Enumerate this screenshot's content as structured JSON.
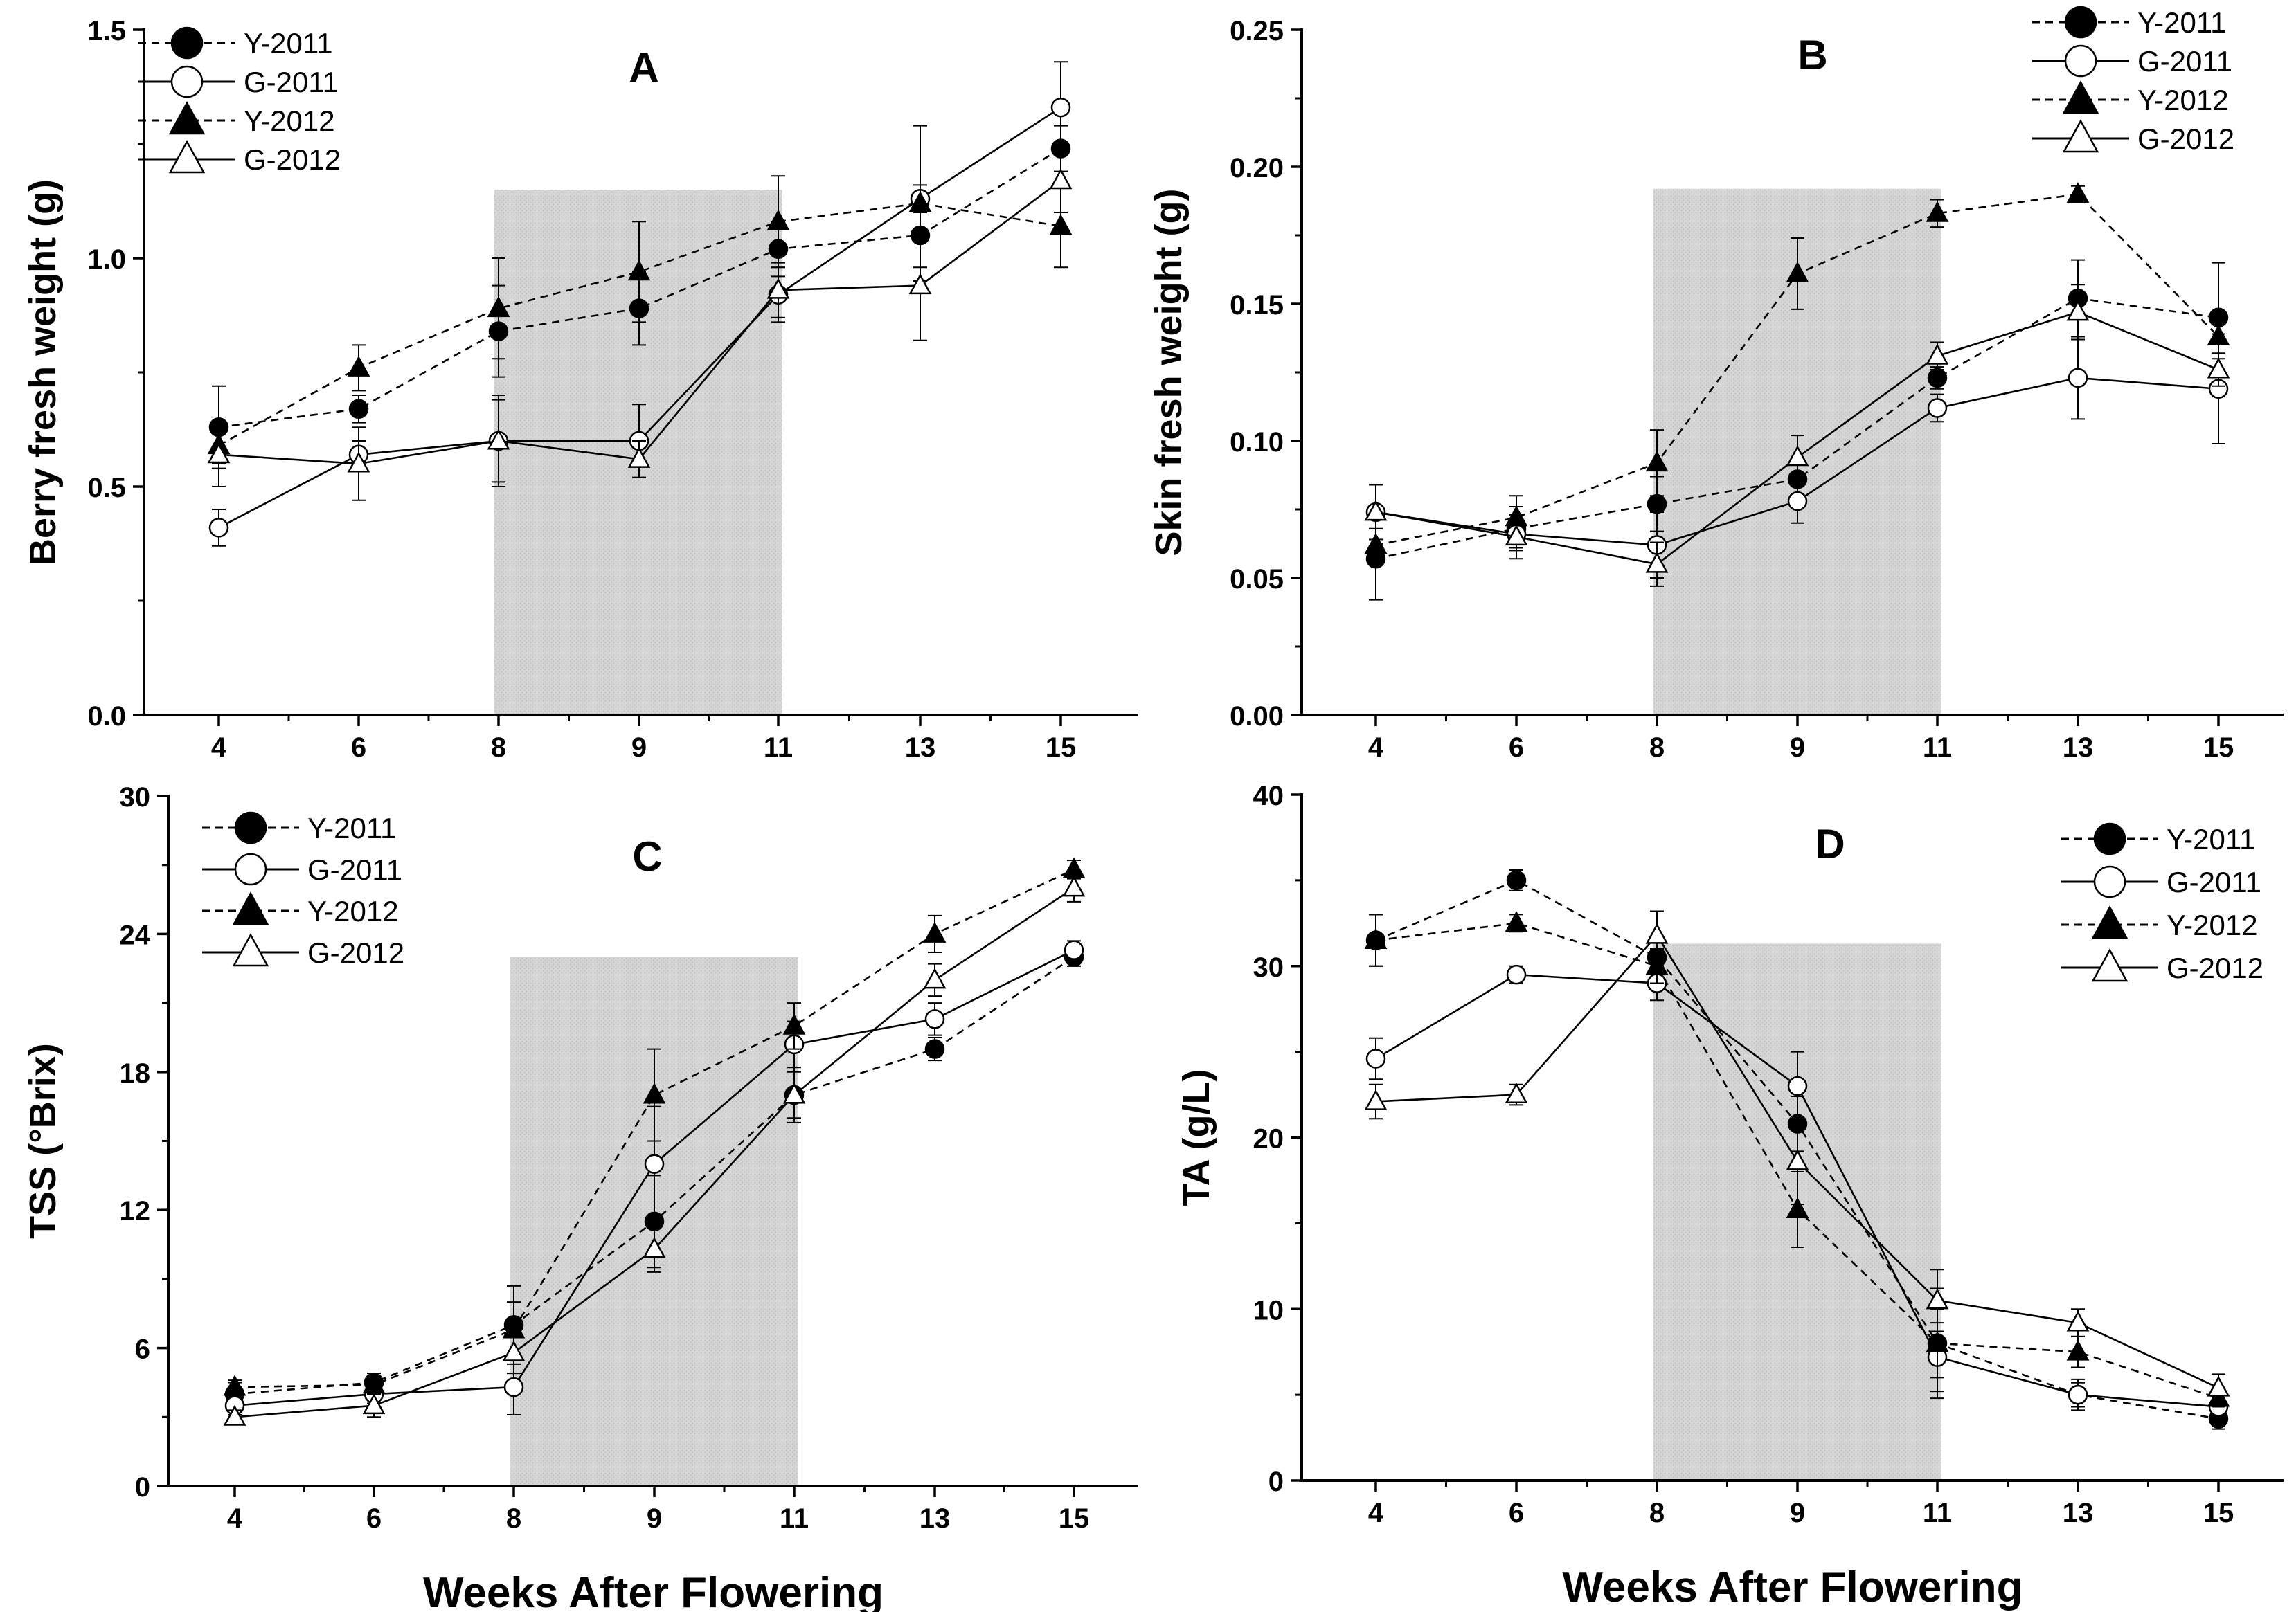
{
  "x_axis_title": "Weeks After Flowering",
  "legend_labels": [
    "Y-2011",
    "G-2011",
    "Y-2012",
    "G-2012"
  ],
  "colors": {
    "ink": "#000000",
    "shade": "#d4d4d4",
    "shade_text_gray": "#7a7a7a"
  },
  "chart_data": [
    {
      "id": "A",
      "type": "line",
      "title": "A",
      "xlabel": "Weeks After Flowering",
      "ylabel": "Berry fresh weight (g)",
      "categories": [
        "4",
        "6",
        "8",
        "9",
        "11",
        "13",
        "15"
      ],
      "ylim": [
        0,
        1.5
      ],
      "yticks": [
        0.0,
        0.5,
        1.0,
        1.5
      ],
      "ytick_labels": [
        "0.0",
        "0.5",
        "1.0",
        "1.5"
      ],
      "shaded_between": [
        "8",
        "11"
      ],
      "shade_top": 1.15,
      "legend_position": "top-left",
      "series": [
        {
          "name": "Y-2011",
          "style": "dashed",
          "marker": "circle-filled",
          "values": [
            0.63,
            0.67,
            0.84,
            0.89,
            1.02,
            1.05,
            1.24
          ],
          "errors": [
            0.09,
            0.03,
            0.1,
            0.08,
            0.06,
            0.07,
            0.05
          ]
        },
        {
          "name": "G-2011",
          "style": "solid",
          "marker": "circle-open",
          "values": [
            0.41,
            0.57,
            0.6,
            0.6,
            0.92,
            1.13,
            1.33
          ],
          "errors": [
            0.04,
            0.03,
            0.09,
            0.08,
            0.06,
            0.03,
            0.1
          ]
        },
        {
          "name": "Y-2012",
          "style": "dashed",
          "marker": "triangle-filled",
          "values": [
            0.59,
            0.76,
            0.89,
            0.97,
            1.08,
            1.12,
            1.07
          ],
          "errors": [
            0.04,
            0.05,
            0.11,
            0.11,
            0.1,
            0.17,
            0.09
          ]
        },
        {
          "name": "G-2012",
          "style": "solid",
          "marker": "triangle-open",
          "values": [
            0.57,
            0.55,
            0.6,
            0.56,
            0.93,
            0.94,
            1.17
          ],
          "errors": [
            0.07,
            0.08,
            0.1,
            0.04,
            0.06,
            0.12,
            0.07
          ]
        }
      ]
    },
    {
      "id": "B",
      "type": "line",
      "title": "B",
      "xlabel": "Weeks After Flowering",
      "ylabel": "Skin fresh weight (g)",
      "categories": [
        "4",
        "6",
        "8",
        "9",
        "11",
        "13",
        "15"
      ],
      "ylim": [
        0,
        0.25
      ],
      "yticks": [
        0.0,
        0.05,
        0.1,
        0.15,
        0.2,
        0.25
      ],
      "ytick_labels": [
        "0.00",
        "0.05",
        "0.10",
        "0.15",
        "0.20",
        "0.25"
      ],
      "shaded_between": [
        "8",
        "11"
      ],
      "shade_top": 0.192,
      "legend_position": "top-right",
      "series": [
        {
          "name": "Y-2011",
          "style": "dashed",
          "marker": "circle-filled",
          "values": [
            0.057,
            0.068,
            0.077,
            0.086,
            0.123,
            0.152,
            0.145
          ],
          "errors": [
            0.015,
            0.008,
            0.01,
            0.008,
            0.004,
            0.014,
            0.02
          ]
        },
        {
          "name": "G-2011",
          "style": "solid",
          "marker": "circle-open",
          "values": [
            0.074,
            0.066,
            0.062,
            0.078,
            0.112,
            0.123,
            0.119
          ],
          "errors": [
            0.01,
            0.005,
            0.012,
            0.008,
            0.005,
            0.015,
            0.02
          ]
        },
        {
          "name": "Y-2012",
          "style": "dashed",
          "marker": "triangle-filled",
          "values": [
            0.062,
            0.072,
            0.092,
            0.161,
            0.183,
            0.19,
            0.138
          ],
          "errors": [
            0.006,
            0.008,
            0.012,
            0.013,
            0.005,
            0.003,
            0.008
          ]
        },
        {
          "name": "G-2012",
          "style": "solid",
          "marker": "triangle-open",
          "values": [
            0.074,
            0.065,
            0.055,
            0.094,
            0.131,
            0.147,
            0.126
          ],
          "errors": [
            0.01,
            0.008,
            0.008,
            0.008,
            0.005,
            0.01,
            0.006
          ]
        }
      ]
    },
    {
      "id": "C",
      "type": "line",
      "title": "C",
      "xlabel": "Weeks After Flowering",
      "ylabel": "TSS (°Brix)",
      "categories": [
        "4",
        "6",
        "8",
        "9",
        "11",
        "13",
        "15"
      ],
      "ylim": [
        0,
        30
      ],
      "yticks": [
        0,
        6,
        12,
        18,
        24,
        30
      ],
      "ytick_labels": [
        "0",
        "6",
        "12",
        "18",
        "24",
        "30"
      ],
      "shaded_between": [
        "8",
        "11"
      ],
      "shade_top": 23,
      "legend_position": "top-left",
      "series": [
        {
          "name": "Y-2011",
          "style": "dashed",
          "marker": "circle-filled",
          "values": [
            4.0,
            4.5,
            7.0,
            11.5,
            17.0,
            19.0,
            23.0
          ],
          "errors": [
            0.5,
            0.4,
            1.7,
            2.0,
            1.2,
            0.5,
            0.4
          ]
        },
        {
          "name": "G-2011",
          "style": "solid",
          "marker": "circle-open",
          "values": [
            3.5,
            4.0,
            4.3,
            14.0,
            19.2,
            20.3,
            23.3
          ],
          "errors": [
            0.4,
            0.4,
            1.2,
            2.5,
            1.0,
            0.7,
            0.4
          ]
        },
        {
          "name": "Y-2012",
          "style": "dashed",
          "marker": "triangle-filled",
          "values": [
            4.3,
            4.4,
            6.8,
            17.0,
            20.0,
            24.0,
            26.8
          ],
          "errors": [
            0.3,
            0.4,
            1.2,
            2.0,
            1.0,
            0.8,
            0.4
          ]
        },
        {
          "name": "G-2012",
          "style": "solid",
          "marker": "triangle-open",
          "values": [
            3.0,
            3.5,
            5.8,
            10.3,
            17.0,
            22.0,
            26.0
          ],
          "errors": [
            0.3,
            0.5,
            0.9,
            1.0,
            1.0,
            0.7,
            0.6
          ]
        }
      ]
    },
    {
      "id": "D",
      "type": "line",
      "title": "D",
      "xlabel": "Weeks After Flowering",
      "ylabel": "TA (g/L)",
      "categories": [
        "4",
        "6",
        "8",
        "9",
        "11",
        "13",
        "15"
      ],
      "ylim": [
        0,
        40
      ],
      "yticks": [
        0,
        10,
        20,
        30,
        40
      ],
      "ytick_labels": [
        "0",
        "10",
        "20",
        "30",
        "40"
      ],
      "shaded_between": [
        "8",
        "11"
      ],
      "shade_top": 31.3,
      "legend_position": "top-right",
      "series": [
        {
          "name": "Y-2011",
          "style": "dashed",
          "marker": "circle-filled",
          "values": [
            31.5,
            35.0,
            30.5,
            20.8,
            8.0,
            5.0,
            3.6
          ],
          "errors": [
            1.5,
            0.6,
            1.0,
            1.6,
            3.2,
            0.7,
            0.6
          ]
        },
        {
          "name": "G-2011",
          "style": "solid",
          "marker": "circle-open",
          "values": [
            24.6,
            29.5,
            29.0,
            23.0,
            7.2,
            5.0,
            4.3
          ],
          "errors": [
            1.2,
            0.5,
            1.0,
            2.0,
            2.0,
            0.9,
            0.7
          ]
        },
        {
          "name": "Y-2012",
          "style": "dashed",
          "marker": "triangle-filled",
          "values": [
            31.5,
            32.5,
            30.0,
            15.8,
            8.0,
            7.5,
            4.8
          ],
          "errors": [
            1.5,
            0.5,
            1.0,
            2.2,
            2.0,
            0.9,
            0.5
          ]
        },
        {
          "name": "G-2012",
          "style": "solid",
          "marker": "triangle-open",
          "values": [
            22.1,
            22.5,
            31.8,
            18.6,
            10.5,
            9.2,
            5.4
          ],
          "errors": [
            1.0,
            0.6,
            1.4,
            2.5,
            1.8,
            0.8,
            0.8
          ]
        }
      ]
    }
  ]
}
